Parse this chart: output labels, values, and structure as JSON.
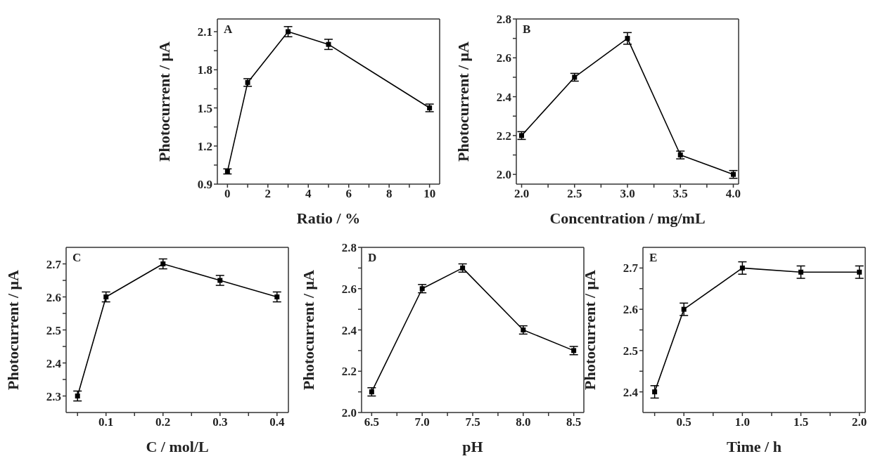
{
  "chart_data": [
    {
      "type": "line",
      "annotations": [
        "A"
      ],
      "xlabel": "Ratio / %",
      "ylabel": "Photocurrent / μA",
      "marker": "square",
      "line_style": "solid",
      "grid": false,
      "legend": false,
      "x": [
        0,
        1,
        3,
        5,
        10
      ],
      "xlim": [
        -0.5,
        10.5
      ],
      "xticks": [
        0,
        {
          "value": 1,
          "label": null
        },
        2,
        {
          "value": 3,
          "label": null
        },
        4,
        {
          "value": 5,
          "label": null
        },
        6,
        {
          "value": 7,
          "label": null
        },
        8,
        {
          "value": 9,
          "label": null
        },
        10
      ],
      "ylim": [
        0.9,
        2.2
      ],
      "yticks": [
        0.9,
        {
          "value": 1.05,
          "label": null
        },
        1.2,
        {
          "value": 1.35,
          "label": null
        },
        1.5,
        {
          "value": 1.65,
          "label": null
        },
        1.8,
        {
          "value": 1.95,
          "label": null
        },
        2.1
      ],
      "series": [
        {
          "color": "#000000",
          "values": [
            1.0,
            1.7,
            2.1,
            2.0,
            1.5
          ],
          "errors": [
            0.02,
            0.03,
            0.04,
            0.04,
            0.03
          ]
        }
      ]
    },
    {
      "type": "line",
      "annotations": [
        "B"
      ],
      "xlabel": "Concentration / mg/mL",
      "ylabel": "Photocurrent / μA",
      "marker": "square",
      "line_style": "solid",
      "grid": false,
      "legend": false,
      "x": [
        2.0,
        2.5,
        3.0,
        3.5,
        4.0
      ],
      "xlim": [
        1.95,
        4.05
      ],
      "xticks": [
        {
          "value": 2,
          "label": "2.0"
        },
        {
          "value": 2.25,
          "label": null
        },
        2.5,
        {
          "value": 2.75,
          "label": null
        },
        {
          "value": 3,
          "label": "3.0"
        },
        {
          "value": 3.25,
          "label": null
        },
        3.5,
        {
          "value": 3.75,
          "label": null
        },
        {
          "value": 4,
          "label": "4.0"
        }
      ],
      "ylim": [
        1.95,
        2.8
      ],
      "yticks": [
        {
          "value": 2,
          "label": "2.0"
        },
        {
          "value": 2.1,
          "label": null
        },
        2.2,
        {
          "value": 2.3,
          "label": null
        },
        2.4,
        {
          "value": 2.5,
          "label": null
        },
        2.6,
        {
          "value": 2.7,
          "label": null
        },
        2.8
      ],
      "series": [
        {
          "color": "#000000",
          "values": [
            2.2,
            2.5,
            2.7,
            2.1,
            2.0
          ],
          "errors": [
            0.02,
            0.02,
            0.03,
            0.02,
            0.02
          ]
        }
      ]
    },
    {
      "type": "line",
      "annotations": [
        "C"
      ],
      "xlabel": "C / mol/L",
      "ylabel": "Photocurrent / μA",
      "marker": "square",
      "line_style": "solid",
      "grid": false,
      "legend": false,
      "x": [
        0.05,
        0.1,
        0.2,
        0.3,
        0.4
      ],
      "xlim": [
        0.03,
        0.42
      ],
      "xticks": [
        {
          "value": 0.05,
          "label": null
        },
        0.1,
        {
          "value": 0.15,
          "label": null
        },
        0.2,
        {
          "value": 0.25,
          "label": null
        },
        0.3,
        {
          "value": 0.35,
          "label": null
        },
        0.4
      ],
      "ylim": [
        2.25,
        2.75
      ],
      "yticks": [
        2.3,
        {
          "value": 2.35,
          "label": null
        },
        2.4,
        {
          "value": 2.45,
          "label": null
        },
        2.5,
        {
          "value": 2.55,
          "label": null
        },
        2.6,
        {
          "value": 2.65,
          "label": null
        },
        2.7
      ],
      "series": [
        {
          "color": "#000000",
          "values": [
            2.3,
            2.6,
            2.7,
            2.65,
            2.6
          ],
          "errors": [
            0.015,
            0.015,
            0.015,
            0.015,
            0.015
          ]
        }
      ]
    },
    {
      "type": "line",
      "annotations": [
        "D"
      ],
      "xlabel": "pH",
      "ylabel": "Photocurrent / μA",
      "marker": "square",
      "line_style": "solid",
      "grid": false,
      "legend": false,
      "x": [
        6.5,
        7.0,
        7.4,
        8.0,
        8.5
      ],
      "xlim": [
        6.4,
        8.6
      ],
      "xticks": [
        6.5,
        {
          "value": 6.75,
          "label": null
        },
        {
          "value": 7,
          "label": "7.0"
        },
        {
          "value": 7.25,
          "label": null
        },
        7.5,
        {
          "value": 7.75,
          "label": null
        },
        {
          "value": 8,
          "label": "8.0"
        },
        {
          "value": 8.25,
          "label": null
        },
        8.5
      ],
      "ylim": [
        2.0,
        2.8
      ],
      "yticks": [
        {
          "value": 2,
          "label": "2.0"
        },
        {
          "value": 2.1,
          "label": null
        },
        2.2,
        {
          "value": 2.3,
          "label": null
        },
        2.4,
        {
          "value": 2.5,
          "label": null
        },
        2.6,
        {
          "value": 2.7,
          "label": null
        },
        2.8
      ],
      "series": [
        {
          "color": "#000000",
          "values": [
            2.1,
            2.6,
            2.7,
            2.4,
            2.3
          ],
          "errors": [
            0.02,
            0.02,
            0.02,
            0.02,
            0.02
          ]
        }
      ]
    },
    {
      "type": "line",
      "annotations": [
        "E"
      ],
      "xlabel": "Time / h",
      "ylabel": "Photocurrent / μA",
      "marker": "square",
      "line_style": "solid",
      "grid": false,
      "legend": false,
      "x": [
        0.25,
        0.5,
        1.0,
        1.5,
        2.0
      ],
      "xlim": [
        0.15,
        2.05
      ],
      "xticks": [
        {
          "value": 0.25,
          "label": null
        },
        0.5,
        {
          "value": 0.75,
          "label": null
        },
        {
          "value": 1,
          "label": "1.0"
        },
        {
          "value": 1.25,
          "label": null
        },
        1.5,
        {
          "value": 1.75,
          "label": null
        },
        {
          "value": 2,
          "label": "2.0"
        }
      ],
      "ylim": [
        2.35,
        2.75
      ],
      "yticks": [
        2.4,
        {
          "value": 2.45,
          "label": null
        },
        2.5,
        {
          "value": 2.55,
          "label": null
        },
        2.6,
        {
          "value": 2.65,
          "label": null
        },
        2.7
      ],
      "series": [
        {
          "color": "#000000",
          "values": [
            2.4,
            2.6,
            2.7,
            2.69,
            2.69
          ],
          "errors": [
            0.015,
            0.015,
            0.015,
            0.015,
            0.015
          ]
        }
      ]
    }
  ]
}
